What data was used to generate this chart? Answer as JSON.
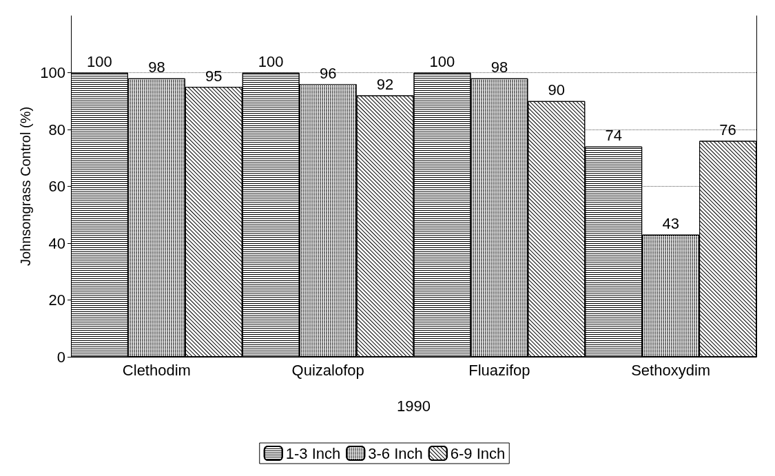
{
  "chart_data": {
    "type": "bar",
    "xlabel": "1990",
    "ylabel": "Johnsongrass Control (%)",
    "categories": [
      "Clethodim",
      "Quizalofop",
      "Fluazifop",
      "Sethoxydim"
    ],
    "series": [
      {
        "name": "1-3 Inch",
        "color": "#ffffff",
        "values": [
          100,
          100,
          100,
          74
        ]
      },
      {
        "name": "3-6 Inch",
        "color": "#ffffff",
        "values": [
          98,
          96,
          98,
          43
        ]
      },
      {
        "name": "6-9 Inch",
        "color": "#ffffff",
        "values": [
          95,
          92,
          90,
          76
        ]
      }
    ],
    "ylim": [
      0,
      120
    ],
    "yticks": [
      0,
      20,
      40,
      60,
      80,
      100
    ],
    "grid": "y",
    "legend": "bottom",
    "data_labels": true
  }
}
